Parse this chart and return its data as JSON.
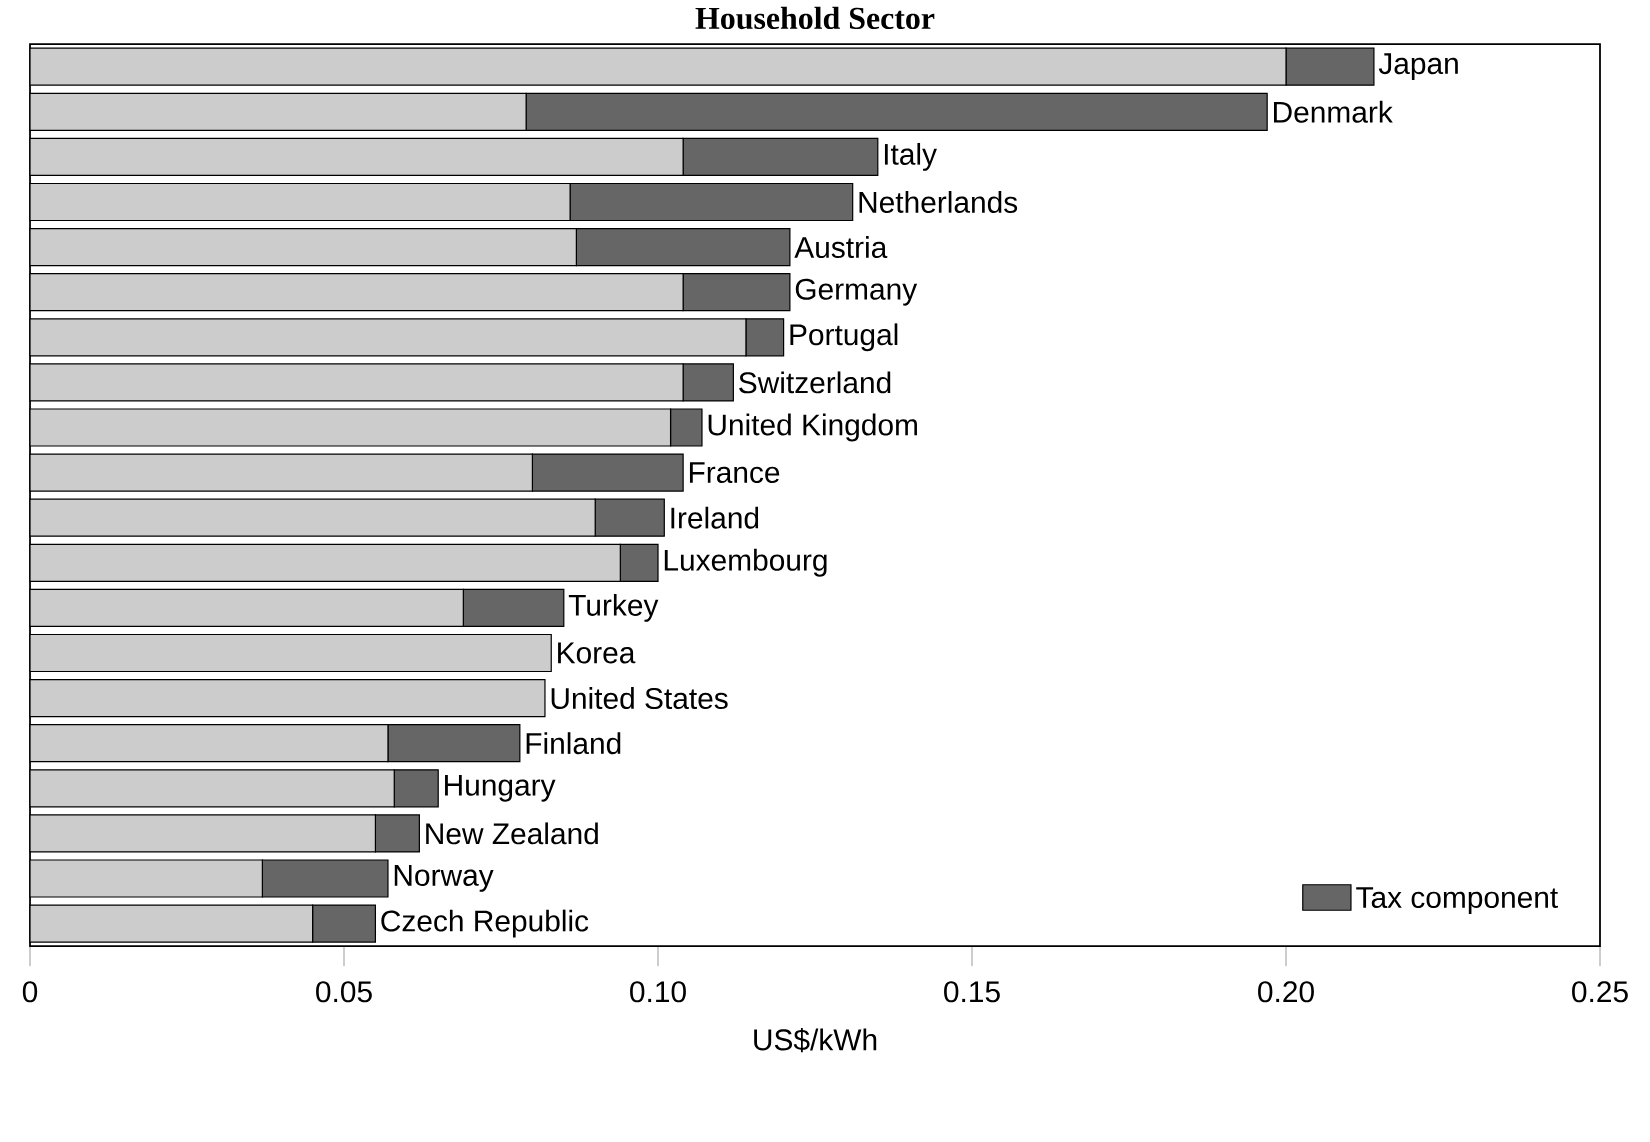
{
  "chart_data": {
    "type": "bar",
    "orientation": "horizontal",
    "stacked": true,
    "title": "Household Sector",
    "xlabel": "US$/kWh",
    "categories": [
      "Japan",
      "Denmark",
      "Italy",
      "Netherlands",
      "Austria",
      "Germany",
      "Portugal",
      "Switzerland",
      "United Kingdom",
      "France",
      "Ireland",
      "Luxembourg",
      "Turkey",
      "Korea",
      "United States",
      "Finland",
      "Hungary",
      "New Zealand",
      "Norway",
      "Czech Republic"
    ],
    "series": [
      {
        "color": "#cccccc",
        "values": [
          0.2,
          0.079,
          0.104,
          0.086,
          0.087,
          0.104,
          0.114,
          0.104,
          0.102,
          0.08,
          0.09,
          0.094,
          0.069,
          0.083,
          0.082,
          0.057,
          0.058,
          0.055,
          0.037,
          0.045
        ]
      },
      {
        "name": "Tax component",
        "color": "#666666",
        "values": [
          0.014,
          0.118,
          0.031,
          0.045,
          0.034,
          0.017,
          0.006,
          0.008,
          0.005,
          0.024,
          0.011,
          0.006,
          0.016,
          0,
          0,
          0.021,
          0.007,
          0.007,
          0.02,
          0.01
        ]
      }
    ],
    "xlim": [
      0,
      0.25
    ],
    "xticks": [
      0,
      0.05,
      {
        "value": 0.1,
        "label": "0.10"
      },
      0.15,
      {
        "value": 0.2,
        "label": "0.20"
      },
      0.25
    ],
    "legend": "bottom right"
  }
}
